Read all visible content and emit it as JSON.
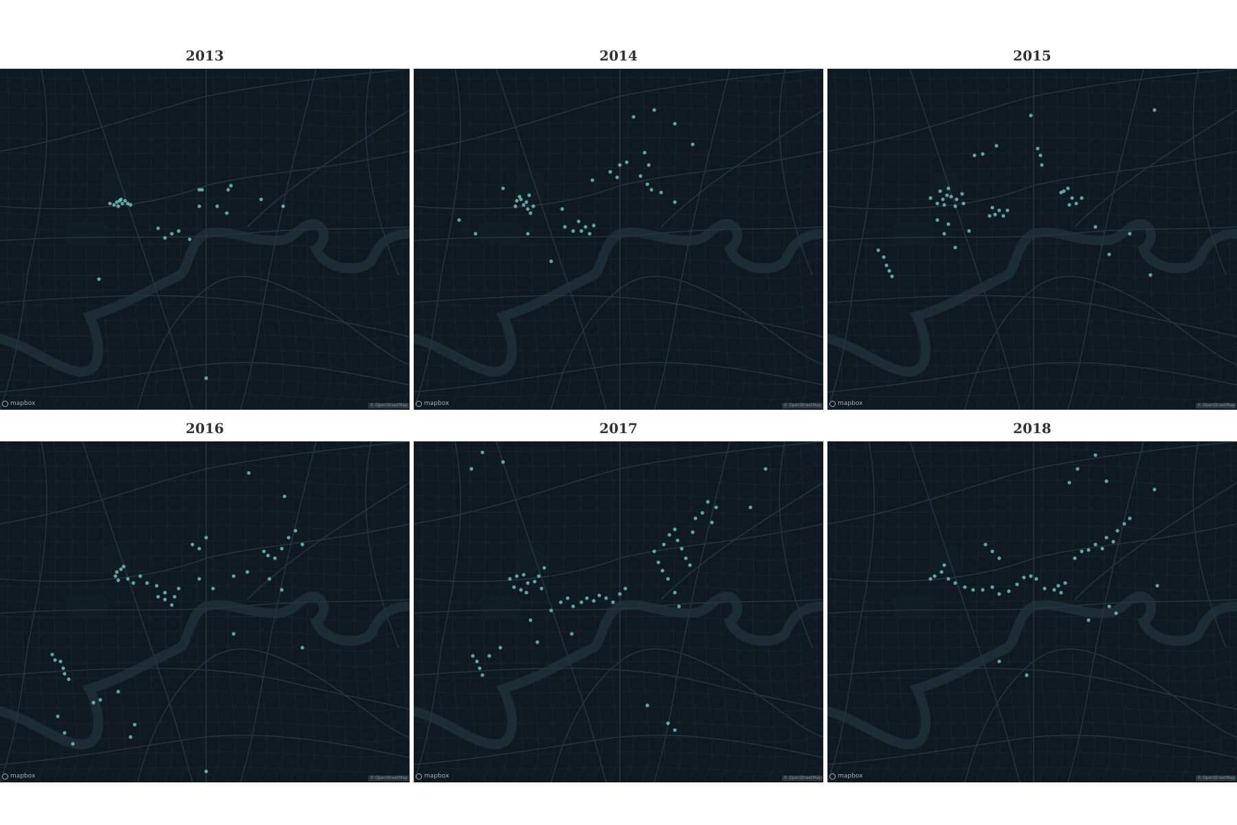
{
  "colors": {
    "land": "#0f1921",
    "road_major": "#24333d",
    "road_minor": "#17232b",
    "river": "#1c2c35",
    "point": "#7fe3dc"
  },
  "map": {
    "logo_label": "mapbox",
    "attribution_text": "© OpenStreetMap"
  },
  "panels": [
    {
      "year": "2013",
      "points": [
        [
          170,
          194
        ],
        [
          174,
          192
        ],
        [
          178,
          196
        ],
        [
          166,
          198
        ],
        [
          182,
          192
        ],
        [
          172,
          200
        ],
        [
          186,
          196
        ],
        [
          160,
          196
        ],
        [
          176,
          190
        ],
        [
          190,
          198
        ],
        [
          290,
          176
        ],
        [
          294,
          176
        ],
        [
          336,
          170
        ],
        [
          332,
          176
        ],
        [
          290,
          200
        ],
        [
          330,
          210
        ],
        [
          260,
          236
        ],
        [
          250,
          240
        ],
        [
          240,
          246
        ],
        [
          230,
          232
        ],
        [
          276,
          248
        ],
        [
          316,
          200
        ],
        [
          144,
          306
        ],
        [
          380,
          190
        ],
        [
          412,
          200
        ],
        [
          300,
          450
        ]
      ]
    },
    {
      "year": "2014",
      "points": [
        [
          150,
          192
        ],
        [
          156,
          190
        ],
        [
          160,
          198
        ],
        [
          148,
          200
        ],
        [
          164,
          194
        ],
        [
          166,
          204
        ],
        [
          174,
          200
        ],
        [
          154,
          186
        ],
        [
          168,
          184
        ],
        [
          170,
          210
        ],
        [
          216,
          204
        ],
        [
          220,
          230
        ],
        [
          232,
          236
        ],
        [
          244,
          236
        ],
        [
          250,
          230
        ],
        [
          256,
          240
        ],
        [
          262,
          228
        ],
        [
          240,
          222
        ],
        [
          286,
          150
        ],
        [
          300,
          140
        ],
        [
          310,
          136
        ],
        [
          336,
          122
        ],
        [
          342,
          140
        ],
        [
          330,
          156
        ],
        [
          296,
          158
        ],
        [
          340,
          168
        ],
        [
          346,
          176
        ],
        [
          360,
          180
        ],
        [
          380,
          194
        ],
        [
          260,
          162
        ],
        [
          130,
          174
        ],
        [
          66,
          220
        ],
        [
          90,
          240
        ],
        [
          200,
          280
        ],
        [
          166,
          240
        ],
        [
          320,
          70
        ],
        [
          350,
          60
        ],
        [
          380,
          80
        ],
        [
          406,
          110
        ]
      ]
    },
    {
      "year": "2015",
      "points": [
        [
          168,
          190
        ],
        [
          174,
          184
        ],
        [
          180,
          186
        ],
        [
          188,
          190
        ],
        [
          196,
          182
        ],
        [
          164,
          178
        ],
        [
          160,
          196
        ],
        [
          170,
          198
        ],
        [
          186,
          200
        ],
        [
          198,
          196
        ],
        [
          176,
          174
        ],
        [
          150,
          188
        ],
        [
          160,
          220
        ],
        [
          176,
          226
        ],
        [
          244,
          212
        ],
        [
          250,
          206
        ],
        [
          256,
          214
        ],
        [
          262,
          206
        ],
        [
          236,
          214
        ],
        [
          240,
          202
        ],
        [
          312,
          140
        ],
        [
          310,
          126
        ],
        [
          306,
          116
        ],
        [
          296,
          68
        ],
        [
          344,
          178
        ],
        [
          350,
          174
        ],
        [
          356,
          188
        ],
        [
          362,
          196
        ],
        [
          370,
          188
        ],
        [
          340,
          180
        ],
        [
          352,
          198
        ],
        [
          82,
          274
        ],
        [
          86,
          286
        ],
        [
          90,
          294
        ],
        [
          74,
          264
        ],
        [
          94,
          302
        ],
        [
          170,
          240
        ],
        [
          186,
          260
        ],
        [
          206,
          236
        ],
        [
          390,
          230
        ],
        [
          440,
          240
        ],
        [
          410,
          270
        ],
        [
          214,
          126
        ],
        [
          246,
          112
        ],
        [
          226,
          124
        ],
        [
          470,
          300
        ],
        [
          476,
          60
        ]
      ]
    },
    {
      "year": "2016",
      "points": [
        [
          170,
          190
        ],
        [
          176,
          186
        ],
        [
          180,
          182
        ],
        [
          168,
          196
        ],
        [
          172,
          202
        ],
        [
          186,
          200
        ],
        [
          194,
          206
        ],
        [
          204,
          196
        ],
        [
          214,
          206
        ],
        [
          228,
          210
        ],
        [
          240,
          220
        ],
        [
          254,
          226
        ],
        [
          260,
          214
        ],
        [
          250,
          238
        ],
        [
          230,
          226
        ],
        [
          240,
          230
        ],
        [
          280,
          150
        ],
        [
          290,
          156
        ],
        [
          300,
          140
        ],
        [
          384,
          160
        ],
        [
          390,
          166
        ],
        [
          400,
          170
        ],
        [
          410,
          156
        ],
        [
          420,
          140
        ],
        [
          430,
          130
        ],
        [
          440,
          150
        ],
        [
          392,
          200
        ],
        [
          410,
          216
        ],
        [
          360,
          190
        ],
        [
          340,
          196
        ],
        [
          310,
          214
        ],
        [
          290,
          200
        ],
        [
          88,
          320
        ],
        [
          92,
          330
        ],
        [
          94,
          338
        ],
        [
          100,
          346
        ],
        [
          80,
          318
        ],
        [
          76,
          310
        ],
        [
          84,
          400
        ],
        [
          94,
          424
        ],
        [
          106,
          440
        ],
        [
          136,
          380
        ],
        [
          146,
          376
        ],
        [
          172,
          364
        ],
        [
          196,
          412
        ],
        [
          362,
          46
        ],
        [
          414,
          80
        ],
        [
          300,
          480
        ],
        [
          190,
          430
        ],
        [
          340,
          280
        ],
        [
          440,
          300
        ]
      ]
    },
    {
      "year": "2017",
      "points": [
        [
          140,
          200
        ],
        [
          150,
          196
        ],
        [
          160,
          194
        ],
        [
          166,
          206
        ],
        [
          176,
          204
        ],
        [
          182,
          196
        ],
        [
          190,
          184
        ],
        [
          156,
          216
        ],
        [
          146,
          212
        ],
        [
          186,
          214
        ],
        [
          214,
          234
        ],
        [
          224,
          228
        ],
        [
          232,
          240
        ],
        [
          244,
          234
        ],
        [
          252,
          228
        ],
        [
          262,
          232
        ],
        [
          270,
          224
        ],
        [
          280,
          228
        ],
        [
          290,
          234
        ],
        [
          300,
          222
        ],
        [
          308,
          214
        ],
        [
          350,
          160
        ],
        [
          356,
          176
        ],
        [
          362,
          188
        ],
        [
          364,
          150
        ],
        [
          372,
          136
        ],
        [
          380,
          128
        ],
        [
          384,
          144
        ],
        [
          390,
          156
        ],
        [
          396,
          170
        ],
        [
          402,
          180
        ],
        [
          406,
          132
        ],
        [
          410,
          112
        ],
        [
          420,
          104
        ],
        [
          428,
          88
        ],
        [
          434,
          118
        ],
        [
          440,
          96
        ],
        [
          370,
          200
        ],
        [
          380,
          220
        ],
        [
          386,
          240
        ],
        [
          92,
          320
        ],
        [
          96,
          330
        ],
        [
          100,
          340
        ],
        [
          86,
          312
        ],
        [
          110,
          312
        ],
        [
          126,
          300
        ],
        [
          164,
          220
        ],
        [
          170,
          260
        ],
        [
          180,
          292
        ],
        [
          200,
          246
        ],
        [
          230,
          280
        ],
        [
          84,
          40
        ],
        [
          100,
          16
        ],
        [
          130,
          30
        ],
        [
          370,
          410
        ],
        [
          380,
          420
        ],
        [
          340,
          384
        ],
        [
          490,
          96
        ],
        [
          512,
          40
        ]
      ]
    },
    {
      "year": "2018",
      "points": [
        [
          150,
          200
        ],
        [
          156,
          196
        ],
        [
          166,
          190
        ],
        [
          176,
          200
        ],
        [
          186,
          206
        ],
        [
          200,
          212
        ],
        [
          212,
          216
        ],
        [
          226,
          216
        ],
        [
          240,
          212
        ],
        [
          250,
          222
        ],
        [
          264,
          218
        ],
        [
          276,
          208
        ],
        [
          286,
          198
        ],
        [
          296,
          196
        ],
        [
          304,
          200
        ],
        [
          316,
          214
        ],
        [
          330,
          216
        ],
        [
          336,
          210
        ],
        [
          340,
          220
        ],
        [
          346,
          206
        ],
        [
          360,
          170
        ],
        [
          370,
          160
        ],
        [
          380,
          158
        ],
        [
          390,
          150
        ],
        [
          400,
          156
        ],
        [
          406,
          140
        ],
        [
          416,
          146
        ],
        [
          422,
          130
        ],
        [
          432,
          120
        ],
        [
          440,
          112
        ],
        [
          352,
          60
        ],
        [
          364,
          40
        ],
        [
          406,
          58
        ],
        [
          230,
          150
        ],
        [
          240,
          160
        ],
        [
          250,
          170
        ],
        [
          410,
          240
        ],
        [
          420,
          250
        ],
        [
          380,
          260
        ],
        [
          170,
          180
        ],
        [
          290,
          340
        ],
        [
          250,
          320
        ],
        [
          476,
          70
        ],
        [
          480,
          210
        ],
        [
          390,
          20
        ]
      ]
    }
  ]
}
